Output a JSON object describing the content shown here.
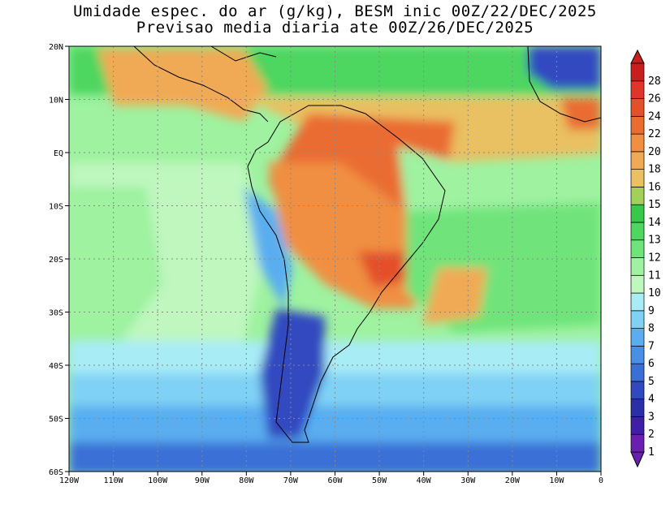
{
  "title": {
    "line1": "Umidade espec. do ar (g/kg), BESM inic 00Z/22/DEC/2025",
    "line2": "Previsao media diaria ate 00Z/26/DEC/2025"
  },
  "map": {
    "lat_labels": [
      "20N",
      "10N",
      "EQ",
      "10S",
      "20S",
      "30S",
      "40S",
      "50S",
      "60S"
    ],
    "lon_labels": [
      "120W",
      "110W",
      "100W",
      "90W",
      "80W",
      "70W",
      "60W",
      "50W",
      "40W",
      "30W",
      "20W",
      "10W",
      "0"
    ],
    "lat_range": [
      -60,
      20
    ],
    "lon_range": [
      -120,
      0
    ],
    "grid": "dotted"
  },
  "colorbar": {
    "levels": [
      "1",
      "2",
      "3",
      "4",
      "5",
      "6",
      "7",
      "8",
      "9",
      "10",
      "11",
      "12",
      "13",
      "14",
      "15",
      "16",
      "18",
      "20",
      "22",
      "24",
      "26",
      "28"
    ],
    "colors": [
      "#6a1fb0",
      "#3f1fa8",
      "#2a2fa8",
      "#3048c0",
      "#3b6fd6",
      "#4a8fe6",
      "#5aaef0",
      "#7fd2f5",
      "#a8ecf6",
      "#bff7bf",
      "#9ef2a0",
      "#6fe47a",
      "#4ed660",
      "#36c94a",
      "#a3d05a",
      "#e9c062",
      "#f0aa55",
      "#f08f42",
      "#ea6c30",
      "#e4502a",
      "#e0352a",
      "#c81e1e"
    ]
  },
  "field_colors": {
    "deep_violet": "#2a2fa8",
    "dark_blue": "#3048c0",
    "mid_blue": "#3b6fd6",
    "light_blue": "#5aaef0",
    "cyan": "#7fd2f5",
    "pale_cyan": "#a8ecf6",
    "pale_green": "#bff7bf",
    "light_green": "#9ef2a0",
    "green": "#6fe47a",
    "strong_green": "#4ed660",
    "tan": "#e9c062",
    "orange": "#f0aa55",
    "deep_orange": "#ea6c30"
  }
}
